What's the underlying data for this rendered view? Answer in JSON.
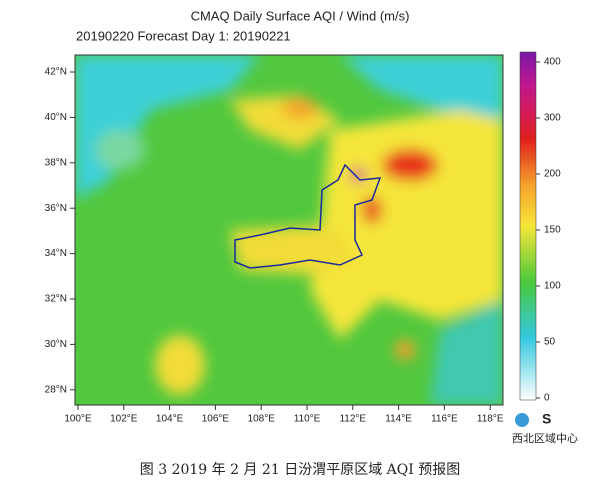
{
  "header": {
    "title": "CMAQ Daily Surface AQI / Wind (m/s)",
    "subtitle": "20190220 Forecast Day 1:  20190221"
  },
  "map": {
    "lat_labels": [
      "42°N",
      "40°N",
      "38°N",
      "36°N",
      "34°N",
      "32°N",
      "30°N",
      "28°N"
    ],
    "lon_labels": [
      "100°E",
      "102°E",
      "104°E",
      "106°E",
      "108°E",
      "110°E",
      "112°E",
      "114°E",
      "116°E",
      "118°E"
    ]
  },
  "colorbar": {
    "ticks": [
      400,
      300,
      200,
      150,
      100,
      50,
      0
    ]
  },
  "logo": {
    "text": "西北区域中心"
  },
  "caption": "图 3   2019 年 2 月 21 日汾渭平原区域 AQI 预报图"
}
